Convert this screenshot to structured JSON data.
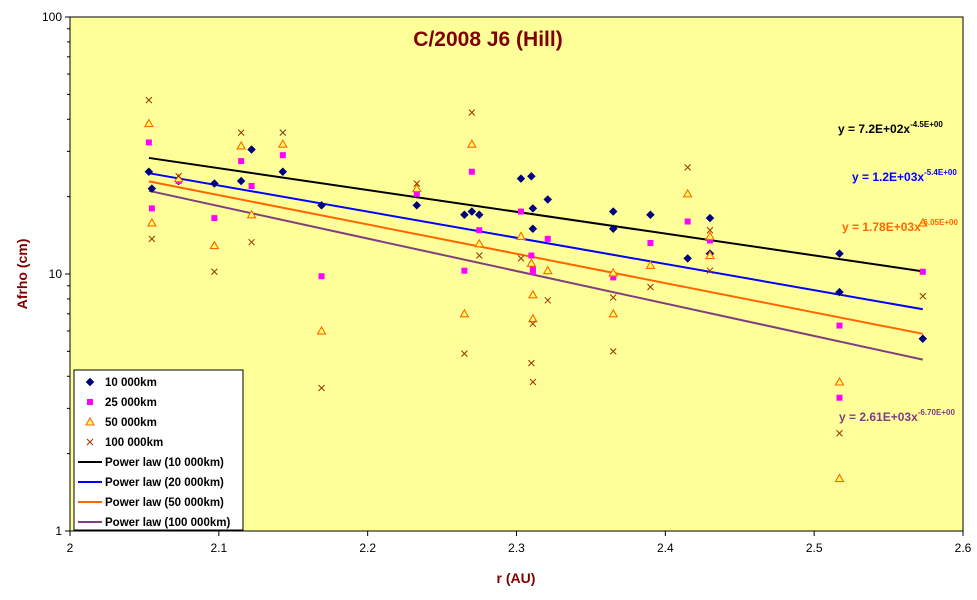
{
  "chart_data": {
    "type": "scatter",
    "title": "C/2008 J6 (Hill)",
    "xlabel": "r (AU)",
    "ylabel": "Afrho (cm)",
    "xlim": [
      2.0,
      2.6
    ],
    "ylim": [
      1,
      100
    ],
    "y_scale": "log",
    "x_ticks": [
      "2",
      "2.1",
      "2.2",
      "2.3",
      "2.4",
      "2.5",
      "2.6"
    ],
    "y_ticks": [
      "1",
      "10",
      "100"
    ],
    "grid": false,
    "legend_position": "bottom-left",
    "colors": {
      "background": "#ffff99",
      "series_10000": "#000080",
      "series_25000": "#ff00ff",
      "series_50000": "#ff6600",
      "series_100000": "#993300",
      "fit_10000": "#000000",
      "fit_20000": "#0000ff",
      "fit_50000": "#ff6600",
      "fit_100000": "#7f3f7f"
    },
    "series": [
      {
        "name": "10 000km",
        "marker": "diamond",
        "color": "#000080",
        "x": [
          2.053,
          2.055,
          2.073,
          2.097,
          2.115,
          2.122,
          2.143,
          2.169,
          2.233,
          2.265,
          2.27,
          2.275,
          2.303,
          2.31,
          2.311,
          2.311,
          2.321,
          2.365,
          2.365,
          2.39,
          2.415,
          2.43,
          2.43,
          2.517,
          2.517,
          2.573
        ],
        "y": [
          25.0,
          21.5,
          23.0,
          22.5,
          23.0,
          30.5,
          25.0,
          18.5,
          18.5,
          17.0,
          17.5,
          17.0,
          23.5,
          24.0,
          18.0,
          15.0,
          19.5,
          17.5,
          15.0,
          17.0,
          11.5,
          16.5,
          12.0,
          12.0,
          8.5,
          5.6
        ]
      },
      {
        "name": "25 000km",
        "marker": "square",
        "color": "#ff00ff",
        "x": [
          2.053,
          2.055,
          2.073,
          2.097,
          2.115,
          2.122,
          2.143,
          2.169,
          2.233,
          2.265,
          2.27,
          2.275,
          2.303,
          2.31,
          2.311,
          2.311,
          2.321,
          2.365,
          2.39,
          2.415,
          2.43,
          2.517,
          2.517,
          2.573
        ],
        "y": [
          32.5,
          18.0,
          23.0,
          16.5,
          27.5,
          22.0,
          29.0,
          9.8,
          20.5,
          10.3,
          25.0,
          14.8,
          17.5,
          11.8,
          10.5,
          10.2,
          13.7,
          9.7,
          13.2,
          16.0,
          13.5,
          6.3,
          3.3,
          10.2
        ]
      },
      {
        "name": "50 000km",
        "marker": "triangle",
        "color": "#ff6600",
        "x": [
          2.053,
          2.055,
          2.073,
          2.097,
          2.115,
          2.122,
          2.143,
          2.169,
          2.233,
          2.265,
          2.27,
          2.275,
          2.303,
          2.31,
          2.311,
          2.311,
          2.321,
          2.365,
          2.365,
          2.39,
          2.415,
          2.43,
          2.43,
          2.517,
          2.517,
          2.573
        ],
        "y": [
          38.5,
          15.8,
          23.5,
          12.9,
          31.5,
          17.0,
          32.0,
          6.0,
          21.5,
          7.0,
          32.0,
          13.1,
          14.0,
          11.0,
          8.3,
          6.7,
          10.3,
          10.1,
          7.0,
          10.8,
          20.5,
          14.0,
          11.8,
          3.8,
          1.6,
          15.8
        ]
      },
      {
        "name": "100 000km",
        "marker": "cross",
        "color": "#993300",
        "x": [
          2.053,
          2.055,
          2.073,
          2.097,
          2.115,
          2.122,
          2.143,
          2.169,
          2.233,
          2.265,
          2.27,
          2.275,
          2.303,
          2.31,
          2.311,
          2.311,
          2.321,
          2.365,
          2.365,
          2.39,
          2.415,
          2.43,
          2.43,
          2.517,
          2.573
        ],
        "y": [
          47.5,
          13.7,
          24.0,
          10.2,
          35.5,
          13.3,
          35.5,
          3.6,
          22.5,
          4.9,
          42.5,
          11.8,
          11.5,
          4.5,
          3.8,
          6.4,
          7.9,
          8.1,
          5.0,
          8.9,
          26.0,
          14.8,
          10.3,
          2.4,
          8.2
        ]
      }
    ],
    "fits": [
      {
        "name": "Power law (10 000km)",
        "color": "#000000",
        "a": 720,
        "b": -4.5,
        "eq_main": "y = 7.2E+02x",
        "eq_exp": "-4.5E+00"
      },
      {
        "name": "Power law (20 000km)",
        "color": "#0000ff",
        "a": 1200,
        "b": -5.4,
        "eq_main": "y = 1.2E+03x",
        "eq_exp": "-5.4E+00"
      },
      {
        "name": "Power law (50 000km)",
        "color": "#ff6600",
        "a": 1780,
        "b": -6.05,
        "eq_main": "y = 1.78E+03x",
        "eq_exp": "-6.05E+00"
      },
      {
        "name": "Power law (100 000km)",
        "color": "#7f3f7f",
        "a": 2610,
        "b": -6.7,
        "eq_main": "y = 2.61E+03x",
        "eq_exp": "-6.70E+00"
      }
    ],
    "fit_x_range": [
      2.053,
      2.573
    ]
  }
}
